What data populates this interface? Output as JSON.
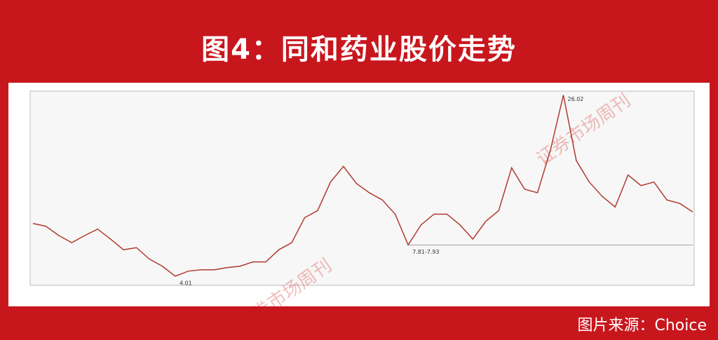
{
  "header": {
    "title": "图4：同和药业股价走势"
  },
  "chart_data": {
    "type": "line",
    "series": [
      {
        "color": "#b03a2e",
        "values": [
          10.42,
          10.08,
          8.95,
          8.08,
          8.95,
          9.73,
          8.52,
          7.22,
          7.48,
          6.09,
          5.22,
          4.01,
          4.62,
          4.79,
          4.79,
          5.05,
          5.22,
          5.74,
          5.74,
          7.22,
          8.08,
          11.12,
          11.98,
          15.45,
          17.36,
          15.28,
          14.15,
          13.28,
          11.55,
          7.81,
          10.25,
          11.55,
          11.55,
          10.25,
          8.52,
          10.68,
          11.98,
          17.18,
          14.58,
          14.15,
          19.35,
          26.02,
          18.05,
          15.45,
          13.71,
          12.42,
          16.31,
          15.02,
          15.45,
          13.28,
          12.85,
          11.81
        ]
      }
    ],
    "ylim": [
      2.9,
      26.5
    ],
    "annotations": [
      {
        "text": "26.02",
        "value": 26.02
      },
      {
        "text": "4.01",
        "value": 4.01
      },
      {
        "text": "7.81-7.93",
        "value": 7.81
      }
    ],
    "watermark": "证券市场周刊"
  },
  "footer": {
    "source": "图片来源：Choice"
  }
}
